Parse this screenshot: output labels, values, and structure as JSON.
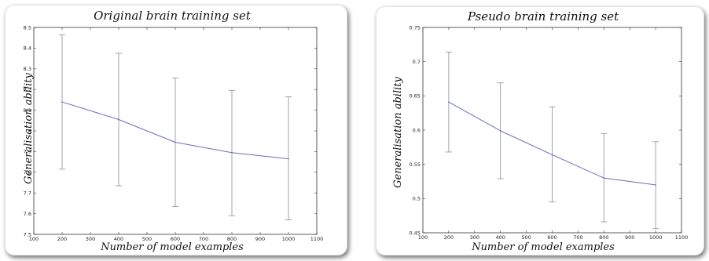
{
  "colors": {
    "series": "#6b6bbf",
    "errorbar": "#8a8aa6",
    "axis": "#333333"
  },
  "chart_data": [
    {
      "type": "line",
      "title": "Original brain training set",
      "xlabel": "Number of model examples",
      "ylabel": "Generalisation ability",
      "xlim": [
        100,
        1100
      ],
      "ylim": [
        7.5,
        8.5
      ],
      "xticks": [
        "100",
        "200",
        "300",
        "400",
        "500",
        "600",
        "700",
        "800",
        "900",
        "1000",
        "1100"
      ],
      "yticks": [
        "7.5",
        "7.6",
        "7.7",
        "7.8",
        "7.9",
        "8",
        "8.1",
        "8.2",
        "8.3",
        "8.4",
        "8.5"
      ],
      "grid": false,
      "series": [
        {
          "x": [
            200,
            400,
            600,
            800,
            1000
          ],
          "y": [
            8.14,
            8.055,
            7.945,
            7.895,
            7.865
          ],
          "err_low": [
            7.815,
            7.735,
            7.635,
            7.59,
            7.57
          ],
          "err_high": [
            8.465,
            8.375,
            8.255,
            8.195,
            8.165
          ]
        }
      ]
    },
    {
      "type": "line",
      "title": "Pseudo brain training set",
      "xlabel": "Number of model examples",
      "ylabel": "Generalisation ability",
      "xlim": [
        100,
        1100
      ],
      "ylim": [
        0.45,
        0.75
      ],
      "xticks": [
        "100",
        "200",
        "300",
        "400",
        "500",
        "600",
        "700",
        "800",
        "900",
        "1000",
        "1100"
      ],
      "yticks": [
        "0.45",
        "0.5",
        "0.55",
        "0.6",
        "0.65",
        "0.7",
        "0.75"
      ],
      "grid": false,
      "series": [
        {
          "x": [
            200,
            400,
            600,
            800,
            1000
          ],
          "y": [
            0.641,
            0.599,
            0.564,
            0.53,
            0.52
          ],
          "err_low": [
            0.568,
            0.529,
            0.495,
            0.466,
            0.456
          ],
          "err_high": [
            0.714,
            0.669,
            0.634,
            0.595,
            0.583
          ]
        }
      ]
    }
  ]
}
